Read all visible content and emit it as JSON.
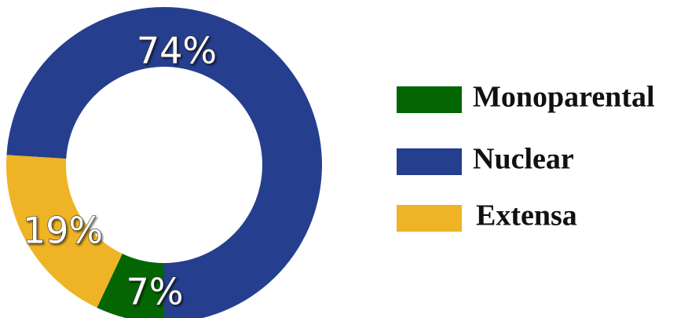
{
  "chart_data": {
    "type": "donut",
    "categories": [
      "Monoparental",
      "Nuclear",
      "Extensa"
    ],
    "values": [
      7,
      74,
      19
    ],
    "value_labels": [
      "7%",
      "74%",
      "19%"
    ],
    "colors": [
      "#036603",
      "#253f8e",
      "#efb425"
    ],
    "legend": "right"
  }
}
